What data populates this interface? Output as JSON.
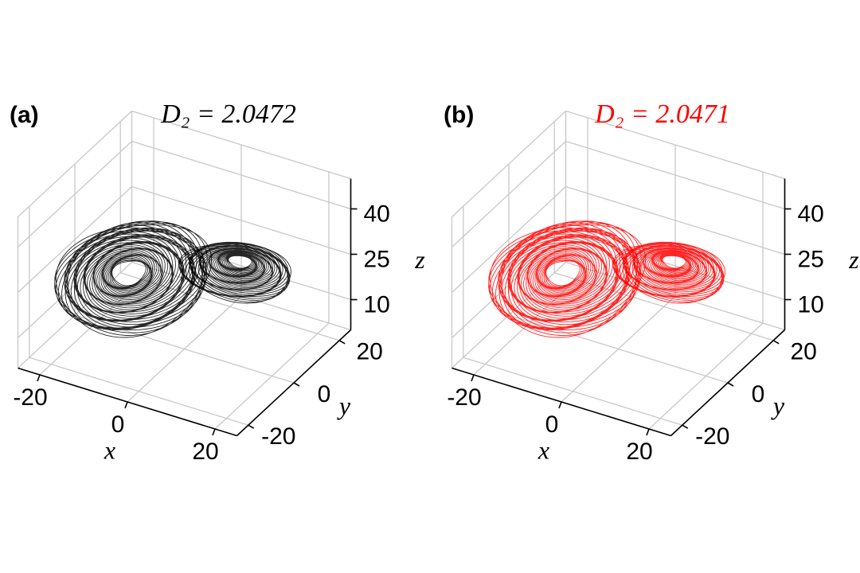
{
  "chart_data": [
    {
      "type": "line3d",
      "panel_label": "(a)",
      "title": "D₂ = 2.0472",
      "title_color": "#000000",
      "color": "#000000",
      "xlim": [
        -25,
        25
      ],
      "ylim": [
        -25,
        25
      ],
      "zlim": [
        0,
        50
      ],
      "xticks": [
        -20,
        0,
        20
      ],
      "yticks": [
        -20,
        0,
        20
      ],
      "zticks": [
        10,
        25,
        40
      ],
      "xlabel": "x",
      "ylabel": "y",
      "zlabel": "z",
      "grid": true
    },
    {
      "type": "line3d",
      "panel_label": "(b)",
      "title": "D₂ = 2.0471",
      "title_color": "#ff0000",
      "color": "#ff0000",
      "xlim": [
        -25,
        25
      ],
      "ylim": [
        -25,
        25
      ],
      "zlim": [
        0,
        50
      ],
      "xticks": [
        -20,
        0,
        20
      ],
      "yticks": [
        -20,
        0,
        20
      ],
      "zticks": [
        10,
        25,
        40
      ],
      "xlabel": "x",
      "ylabel": "y",
      "zlabel": "z",
      "grid": true
    }
  ]
}
